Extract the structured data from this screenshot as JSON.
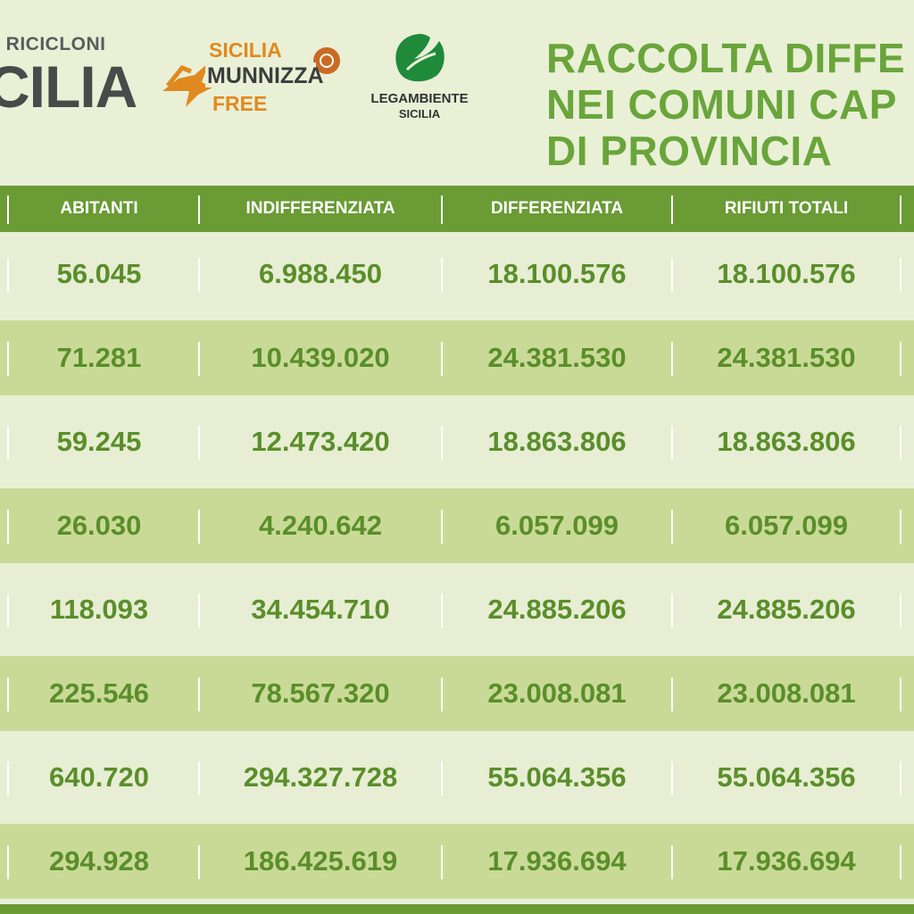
{
  "header": {
    "logo_comuni": {
      "small": "I RICICLONI",
      "big": "CILIA"
    },
    "logo_munnizza": {
      "line1": "SICILIA",
      "line2": "MUNNIZZA",
      "line3": "FREE"
    },
    "logo_legambiente": {
      "line1": "LEGAMBIENTE",
      "line2": "SICILIA"
    },
    "title": [
      "RACCOLTA DIFFE",
      "NEI COMUNI CAP",
      "DI PROVINCIA"
    ]
  },
  "table": {
    "columns": [
      "ABITANTI",
      "INDIFFERENZIATA",
      "DIFFERENZIATA",
      "RIFIUTI TOTALI"
    ],
    "rows": [
      [
        "56.045",
        "6.988.450",
        "18.100.576",
        "18.100.576"
      ],
      [
        "71.281",
        "10.439.020",
        "24.381.530",
        "24.381.530"
      ],
      [
        "59.245",
        "12.473.420",
        "18.863.806",
        "18.863.806"
      ],
      [
        "26.030",
        "4.240.642",
        "6.057.099",
        "6.057.099"
      ],
      [
        "118.093",
        "34.454.710",
        "24.885.206",
        "24.885.206"
      ],
      [
        "225.546",
        "78.567.320",
        "23.008.081",
        "23.008.081"
      ],
      [
        "640.720",
        "294.327.728",
        "55.064.356",
        "55.064.356"
      ],
      [
        "294.928",
        "186.425.619",
        "17.936.694",
        "17.936.694"
      ]
    ]
  },
  "colors": {
    "accent_green": "#6a9b34",
    "title_green": "#6aa53b",
    "value_green": "#5a8e2a",
    "row_light": "#e7eed3",
    "row_dark": "#c9da97",
    "munnizza_orange": "#e0891f"
  }
}
